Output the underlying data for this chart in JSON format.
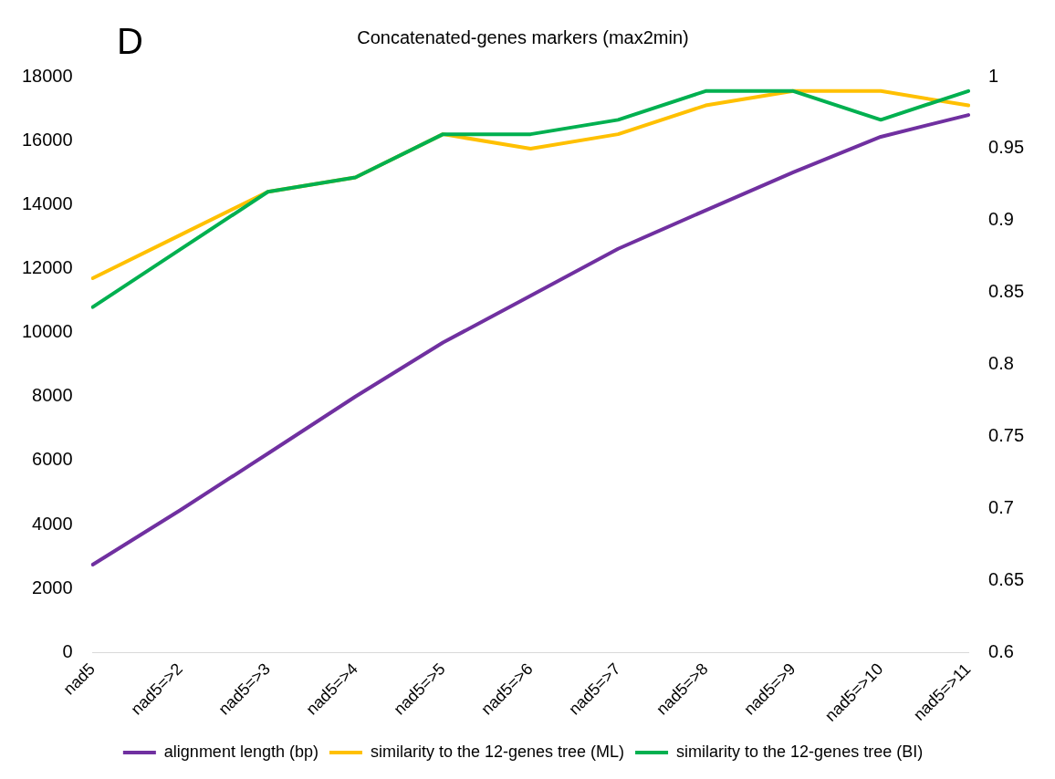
{
  "chart_data": {
    "type": "line",
    "title": "Concatenated-genes markers (max2min)",
    "annotations": [
      "D"
    ],
    "categories": [
      "nad5",
      "nad5=>2",
      "nad5=>3",
      "nad5=>4",
      "nad5=>5",
      "nad5=>6",
      "nad5=>7",
      "nad5=>8",
      "nad5=>9",
      "nad5=>10",
      "nad5=>11"
    ],
    "series": [
      {
        "name": "alignment length (bp)",
        "color": "#7030a0",
        "values": [
          2750,
          4450,
          6220,
          8000,
          9690,
          11150,
          12620,
          13820,
          15010,
          16120,
          16800
        ]
      },
      {
        "name": "similarity to the 12-genes tree (ML)",
        "color": "#ffc000",
        "axis": "y2",
        "values": [
          0.86,
          0.89,
          0.92,
          0.93,
          0.96,
          0.95,
          0.96,
          0.98,
          0.99,
          0.99,
          0.98
        ]
      },
      {
        "name": "similarity to the 12-genes tree (BI)",
        "color": "#00b050",
        "axis": "y2",
        "values": [
          0.84,
          0.88,
          0.92,
          0.93,
          0.96,
          0.96,
          0.97,
          0.99,
          0.99,
          0.97,
          0.99
        ]
      }
    ],
    "ylim": [
      0,
      18000
    ],
    "yticks": [
      0,
      2000,
      4000,
      6000,
      8000,
      10000,
      12000,
      14000,
      16000,
      18000
    ],
    "y2lim": [
      0.6,
      1
    ],
    "y2ticks": [
      0.6,
      0.65,
      0.7,
      0.75,
      0.8,
      0.85,
      0.9,
      0.95,
      1
    ],
    "grid": false,
    "legend": "bottom",
    "marker": "none",
    "line_style": "solid"
  }
}
